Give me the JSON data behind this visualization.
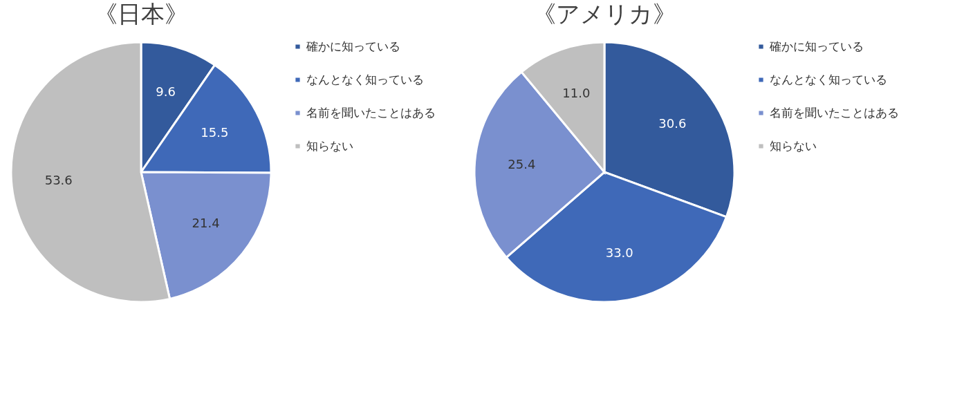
{
  "chart_data": [
    {
      "type": "pie",
      "title": "《日本》",
      "categories": [
        "確かに知っている",
        "なんとなく知っている",
        "名前を聞いたことはある",
        "知らない"
      ],
      "values": [
        9.6,
        15.5,
        21.4,
        53.6
      ],
      "colors": [
        "#335a9c",
        "#3f69b8",
        "#7a90cf",
        "#bfbfbf"
      ],
      "value_labels": [
        "9.6",
        "15.5",
        "21.4",
        "53.6"
      ],
      "legend": "right"
    },
    {
      "type": "pie",
      "title": "《アメリカ》",
      "categories": [
        "確かに知っている",
        "なんとなく知っている",
        "名前を聞いたことはある",
        "知らない"
      ],
      "values": [
        30.6,
        33.0,
        25.4,
        11.0
      ],
      "colors": [
        "#335a9c",
        "#3f69b8",
        "#7a90cf",
        "#bfbfbf"
      ],
      "value_labels": [
        "30.6",
        "33.0",
        "25.4",
        "11.0"
      ],
      "legend": "right"
    }
  ]
}
